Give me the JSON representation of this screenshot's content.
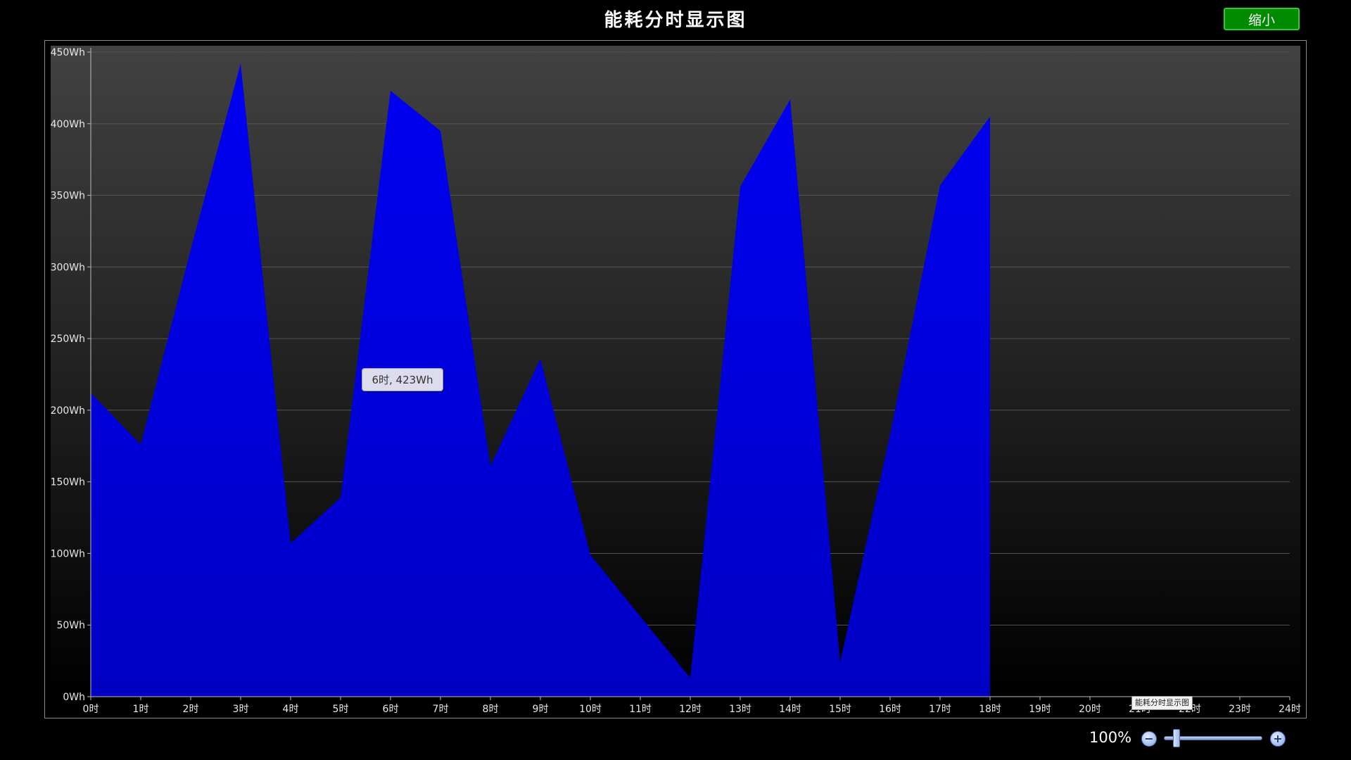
{
  "title": "能耗分时显示图",
  "shrink_button": "缩小",
  "tooltip": "6时, 423Wh",
  "mini_tooltip": "能耗分时显示图",
  "zoom": {
    "level": "100%",
    "slider_fraction": 0.1
  },
  "colors": {
    "area_top": "#0000f2",
    "area_bottom": "#0000c4",
    "background_top": "#424242",
    "background_bottom": "#000000",
    "grid": "#555555",
    "button": "#008a00"
  },
  "chart_data": {
    "type": "area",
    "title": "能耗分时显示图",
    "xlabel": "",
    "ylabel": "",
    "x_unit": "时",
    "y_unit": "Wh",
    "xlim": [
      0,
      24
    ],
    "ylim": [
      0,
      450
    ],
    "x_ticks": [
      "0时",
      "1时",
      "2时",
      "3时",
      "4时",
      "5时",
      "6时",
      "7时",
      "8时",
      "9时",
      "10时",
      "11时",
      "12时",
      "13时",
      "14时",
      "15时",
      "16时",
      "17时",
      "18时",
      "19时",
      "20时",
      "21时",
      "22时",
      "23时",
      "24时"
    ],
    "y_ticks": [
      "0Wh",
      "50Wh",
      "100Wh",
      "150Wh",
      "200Wh",
      "250Wh",
      "300Wh",
      "350Wh",
      "400Wh",
      "450Wh"
    ],
    "grid": true,
    "legend": "none",
    "x": [
      0,
      1,
      2,
      3,
      4,
      5,
      6,
      7,
      8,
      9,
      10,
      11,
      12,
      13,
      14,
      15,
      16,
      17,
      18
    ],
    "values": [
      212,
      176,
      312,
      442,
      107,
      139,
      423,
      395,
      161,
      236,
      99,
      56,
      13,
      356,
      417,
      24,
      183,
      357,
      405
    ]
  }
}
